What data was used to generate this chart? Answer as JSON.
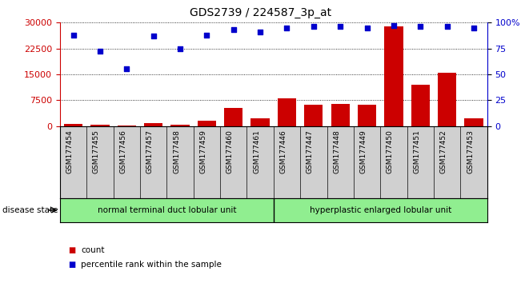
{
  "title": "GDS2739 / 224587_3p_at",
  "samples": [
    "GSM177454",
    "GSM177455",
    "GSM177456",
    "GSM177457",
    "GSM177458",
    "GSM177459",
    "GSM177460",
    "GSM177461",
    "GSM177446",
    "GSM177447",
    "GSM177448",
    "GSM177449",
    "GSM177450",
    "GSM177451",
    "GSM177452",
    "GSM177453"
  ],
  "counts": [
    700,
    300,
    200,
    900,
    400,
    1500,
    5200,
    2200,
    8000,
    6200,
    6400,
    6200,
    29000,
    12000,
    15500,
    2200
  ],
  "percentiles": [
    88,
    72,
    55,
    87,
    75,
    88,
    93,
    91,
    95,
    96,
    96,
    95,
    97,
    96,
    96,
    95
  ],
  "group1_label": "normal terminal duct lobular unit",
  "group2_label": "hyperplastic enlarged lobular unit",
  "group_color": "#90EE90",
  "group1_n": 8,
  "group2_n": 8,
  "left_ylim": [
    0,
    30000
  ],
  "left_yticks": [
    0,
    7500,
    15000,
    22500,
    30000
  ],
  "right_ylim": [
    0,
    100
  ],
  "right_yticks": [
    0,
    25,
    50,
    75,
    100
  ],
  "bar_color": "#cc0000",
  "scatter_color": "#0000cc",
  "grid_color": "#000000",
  "legend_count_color": "#cc0000",
  "legend_percentile_color": "#0000cc",
  "disease_state_label": "disease state",
  "ylabel_left_color": "#cc0000",
  "ylabel_right_color": "#0000cc",
  "gray_bg": "#d0d0d0",
  "title_fontsize": 10
}
